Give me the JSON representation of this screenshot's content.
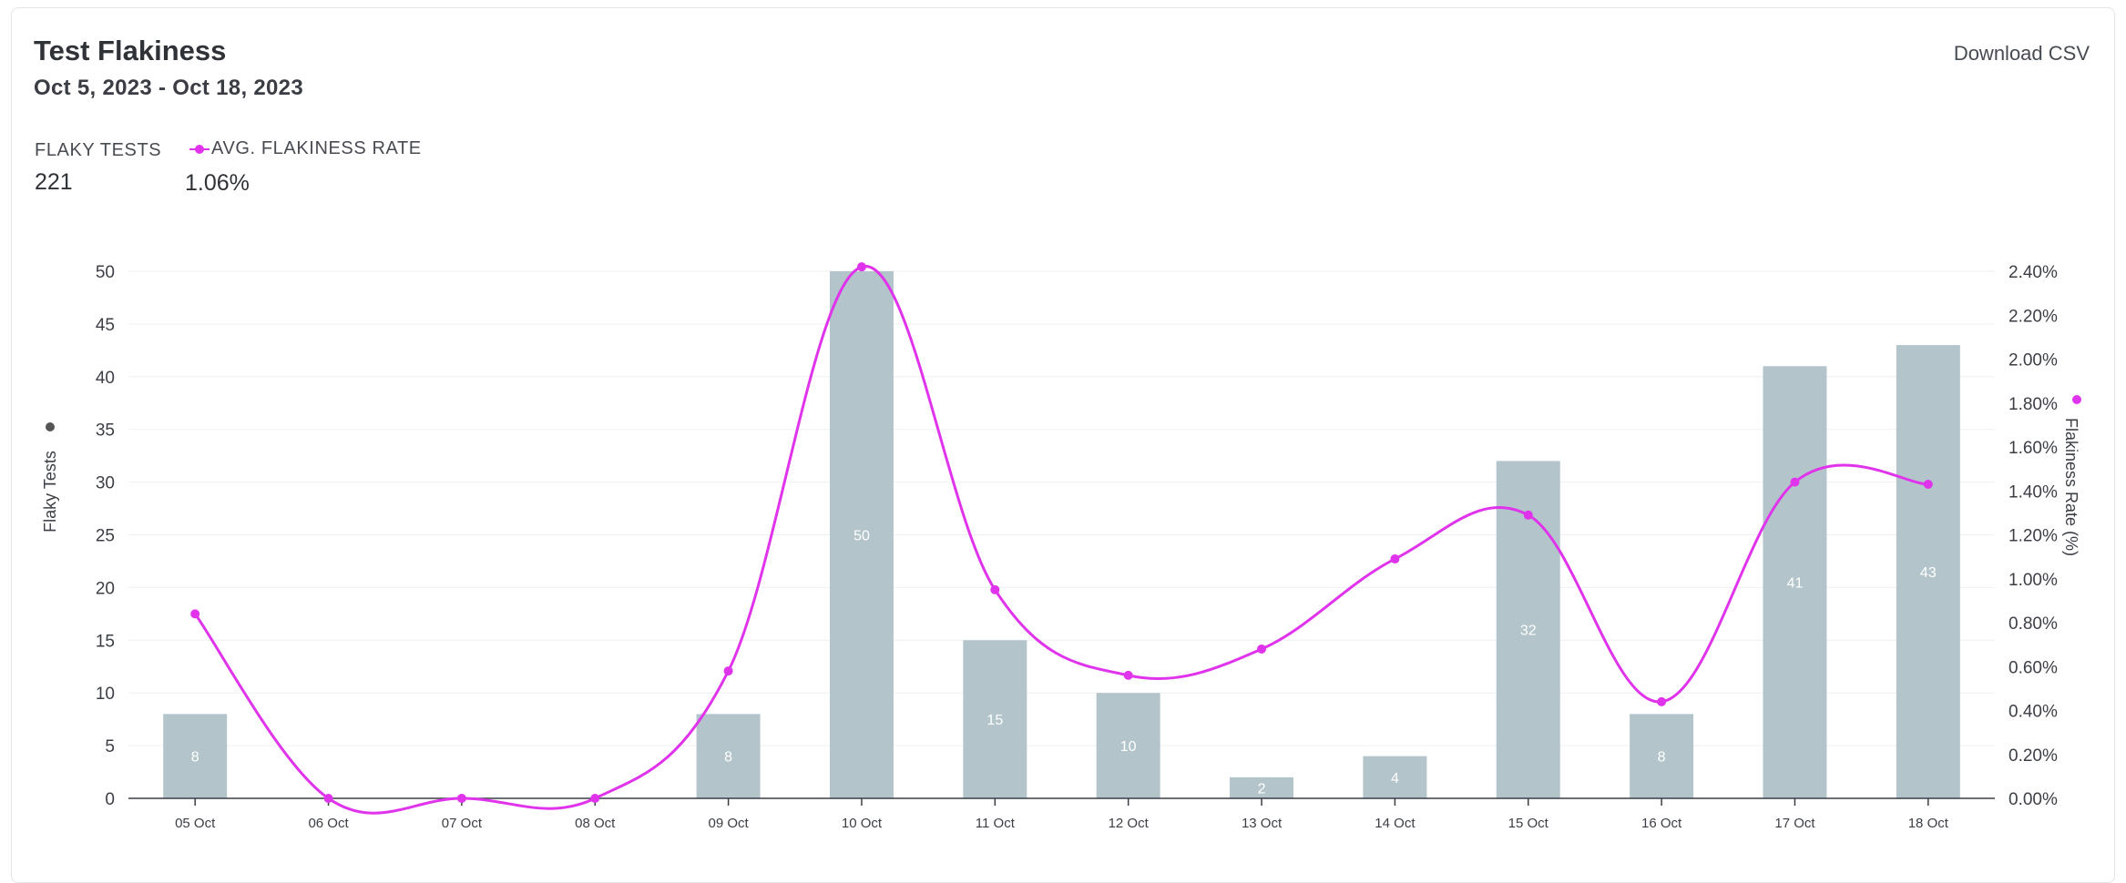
{
  "header": {
    "title": "Test Flakiness",
    "date_range": "Oct 5, 2023 - Oct 18, 2023",
    "download_label": "Download CSV"
  },
  "stats": {
    "flaky_tests_label": "FLAKY TESTS",
    "flaky_tests_value": "221",
    "flakiness_label": "AVG. FLAKINESS RATE",
    "flakiness_value": "1.06%"
  },
  "colors": {
    "bar": "#b3c5ca",
    "line": "#e033ec",
    "axis": "#3a3e44",
    "grid": "#eef0f2",
    "text": "#3b3f45"
  },
  "chart_data": {
    "type": "bar",
    "categories": [
      "05 Oct",
      "06 Oct",
      "07 Oct",
      "08 Oct",
      "09 Oct",
      "10 Oct",
      "11 Oct",
      "12 Oct",
      "13 Oct",
      "14 Oct",
      "15 Oct",
      "16 Oct",
      "17 Oct",
      "18 Oct"
    ],
    "series": [
      {
        "type": "bar",
        "axis": "left",
        "values": [
          8,
          0,
          0,
          0,
          8,
          50,
          15,
          10,
          2,
          4,
          32,
          8,
          41,
          43
        ],
        "data_labels": [
          "8",
          "",
          "",
          "",
          "8",
          "50",
          "15",
          "10",
          "2",
          "4",
          "32",
          "8",
          "41",
          "43"
        ]
      },
      {
        "type": "line",
        "axis": "right",
        "values": [
          0.84,
          0,
          0,
          0,
          0.58,
          2.42,
          0.95,
          0.56,
          0.68,
          1.09,
          1.29,
          0.44,
          1.44,
          1.43
        ]
      }
    ],
    "ylabel": "Flaky Tests",
    "ylabel_right": "Flakiness Rate (%)",
    "ylim": [
      0,
      50
    ],
    "ylim_right": [
      0,
      2.4
    ],
    "yticks": [
      "0",
      "5",
      "10",
      "15",
      "20",
      "25",
      "30",
      "35",
      "40",
      "45",
      "50"
    ],
    "yticks_right": [
      "0.00%",
      "0.20%",
      "0.40%",
      "0.60%",
      "0.80%",
      "1.00%",
      "1.20%",
      "1.40%",
      "1.60%",
      "1.80%",
      "2.00%",
      "2.20%",
      "2.40%"
    ],
    "grid": true
  }
}
